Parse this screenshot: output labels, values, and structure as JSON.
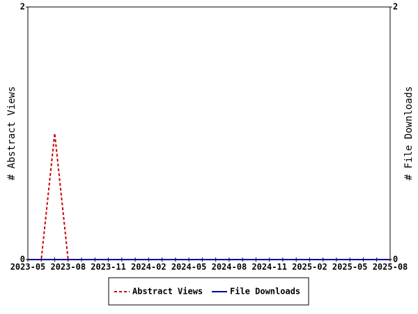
{
  "chart_data": {
    "type": "line",
    "categories": [
      "2023-05",
      null,
      null,
      "2023-08",
      null,
      null,
      "2023-11",
      null,
      null,
      "2024-02",
      null,
      null,
      "2024-05",
      null,
      null,
      "2024-08",
      null,
      null,
      "2024-11",
      null,
      null,
      "2025-02",
      null,
      null,
      "2025-05",
      null,
      null,
      "2025-08"
    ],
    "series": [
      {
        "name": "Abstract Views",
        "color": "#cc0000",
        "dashed": true,
        "values": [
          0,
          0,
          1,
          0,
          0,
          0,
          0,
          0,
          0,
          0,
          0,
          0,
          0,
          0,
          0,
          0,
          0,
          0,
          0,
          0,
          0,
          0,
          0,
          0,
          0,
          0,
          0,
          0
        ]
      },
      {
        "name": "File Downloads",
        "color": "#000099",
        "axis": "y2",
        "values": [
          0,
          0,
          0,
          0,
          0,
          0,
          0,
          0,
          0,
          0,
          0,
          0,
          0,
          0,
          0,
          0,
          0,
          0,
          0,
          0,
          0,
          0,
          0,
          0,
          0,
          0,
          0,
          0
        ]
      }
    ],
    "ylabel": "# Abstract Views",
    "y2label": "# File Downloads",
    "ylim": [
      0,
      2
    ],
    "yticks": [
      0,
      2
    ],
    "y2lim": [
      0,
      2
    ],
    "y2ticks": [
      0,
      2
    ]
  }
}
